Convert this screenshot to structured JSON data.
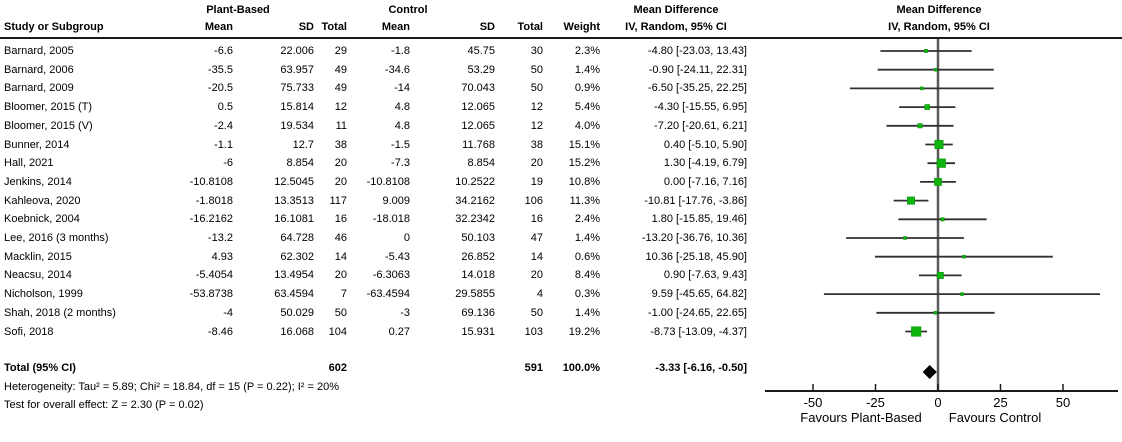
{
  "header": {
    "study_col": "Study or Subgroup",
    "group_plant": "Plant-Based",
    "group_control": "Control",
    "md_title": "Mean Difference",
    "md_sub": "IV, Random, 95% CI",
    "cols": {
      "mean": "Mean",
      "sd": "SD",
      "total": "Total",
      "weight": "Weight"
    }
  },
  "chart_data": {
    "type": "forest",
    "effect_measure": "Mean Difference, IV, Random, 95% CI",
    "axis": {
      "ticks": [
        -50,
        -25,
        0,
        25,
        50
      ],
      "tick_labels": [
        "-50",
        "-25",
        "0",
        "25",
        "50"
      ],
      "xlim": [
        -69,
        72
      ],
      "label_left": "Favours Plant-Based",
      "label_right": "Favours Control"
    },
    "studies": [
      {
        "name": "Barnard, 2005",
        "pb_mean": "-6.6",
        "pb_sd": "22.006",
        "pb_total": "29",
        "c_mean": "-1.8",
        "c_sd": "45.75",
        "c_total": "30",
        "weight": "2.3%",
        "ci_text": "-4.80 [-23.03, 13.43]",
        "est": -4.8,
        "lo": -23.03,
        "hi": 13.43,
        "weight_num": 2.3
      },
      {
        "name": "Barnard, 2006",
        "pb_mean": "-35.5",
        "pb_sd": "63.957",
        "pb_total": "49",
        "c_mean": "-34.6",
        "c_sd": "53.29",
        "c_total": "50",
        "weight": "1.4%",
        "ci_text": "-0.90 [-24.11, 22.31]",
        "est": -0.9,
        "lo": -24.11,
        "hi": 22.31,
        "weight_num": 1.4
      },
      {
        "name": "Barnard, 2009",
        "pb_mean": "-20.5",
        "pb_sd": "75.733",
        "pb_total": "49",
        "c_mean": "-14",
        "c_sd": "70.043",
        "c_total": "50",
        "weight": "0.9%",
        "ci_text": "-6.50 [-35.25, 22.25]",
        "est": -6.5,
        "lo": -35.25,
        "hi": 22.25,
        "weight_num": 0.9
      },
      {
        "name": "Bloomer, 2015 (T)",
        "pb_mean": "0.5",
        "pb_sd": "15.814",
        "pb_total": "12",
        "c_mean": "4.8",
        "c_sd": "12.065",
        "c_total": "12",
        "weight": "5.4%",
        "ci_text": "-4.30 [-15.55, 6.95]",
        "est": -4.3,
        "lo": -15.55,
        "hi": 6.95,
        "weight_num": 5.4
      },
      {
        "name": "Bloomer, 2015 (V)",
        "pb_mean": "-2.4",
        "pb_sd": "19.534",
        "pb_total": "11",
        "c_mean": "4.8",
        "c_sd": "12.065",
        "c_total": "12",
        "weight": "4.0%",
        "ci_text": "-7.20 [-20.61, 6.21]",
        "est": -7.2,
        "lo": -20.61,
        "hi": 6.21,
        "weight_num": 4.0
      },
      {
        "name": "Bunner, 2014",
        "pb_mean": "-1.1",
        "pb_sd": "12.7",
        "pb_total": "38",
        "c_mean": "-1.5",
        "c_sd": "11.768",
        "c_total": "38",
        "weight": "15.1%",
        "ci_text": "0.40 [-5.10, 5.90]",
        "est": 0.4,
        "lo": -5.1,
        "hi": 5.9,
        "weight_num": 15.1
      },
      {
        "name": "Hall, 2021",
        "pb_mean": "-6",
        "pb_sd": "8.854",
        "pb_total": "20",
        "c_mean": "-7.3",
        "c_sd": "8.854",
        "c_total": "20",
        "weight": "15.2%",
        "ci_text": "1.30 [-4.19, 6.79]",
        "est": 1.3,
        "lo": -4.19,
        "hi": 6.79,
        "weight_num": 15.2
      },
      {
        "name": "Jenkins, 2014",
        "pb_mean": "-10.8108",
        "pb_sd": "12.5045",
        "pb_total": "20",
        "c_mean": "-10.8108",
        "c_sd": "10.2522",
        "c_total": "19",
        "weight": "10.8%",
        "ci_text": "0.00 [-7.16, 7.16]",
        "est": 0.0,
        "lo": -7.16,
        "hi": 7.16,
        "weight_num": 10.8
      },
      {
        "name": "Kahleova, 2020",
        "pb_mean": "-1.8018",
        "pb_sd": "13.3513",
        "pb_total": "117",
        "c_mean": "9.009",
        "c_sd": "34.2162",
        "c_total": "106",
        "weight": "11.3%",
        "ci_text": "-10.81 [-17.76, -3.86]",
        "est": -10.81,
        "lo": -17.76,
        "hi": -3.86,
        "weight_num": 11.3
      },
      {
        "name": "Koebnick, 2004",
        "pb_mean": "-16.2162",
        "pb_sd": "16.1081",
        "pb_total": "16",
        "c_mean": "-18.018",
        "c_sd": "32.2342",
        "c_total": "16",
        "weight": "2.4%",
        "ci_text": "1.80 [-15.85, 19.46]",
        "est": 1.8,
        "lo": -15.85,
        "hi": 19.46,
        "weight_num": 2.4
      },
      {
        "name": "Lee, 2016 (3 months)",
        "pb_mean": "-13.2",
        "pb_sd": "64.728",
        "pb_total": "46",
        "c_mean": "0",
        "c_sd": "50.103",
        "c_total": "47",
        "weight": "1.4%",
        "ci_text": "-13.20 [-36.76, 10.36]",
        "est": -13.2,
        "lo": -36.76,
        "hi": 10.36,
        "weight_num": 1.4
      },
      {
        "name": "Macklin, 2015",
        "pb_mean": "4.93",
        "pb_sd": "62.302",
        "pb_total": "14",
        "c_mean": "-5.43",
        "c_sd": "26.852",
        "c_total": "14",
        "weight": "0.6%",
        "ci_text": "10.36 [-25.18, 45.90]",
        "est": 10.36,
        "lo": -25.18,
        "hi": 45.9,
        "weight_num": 0.6
      },
      {
        "name": "Neacsu, 2014",
        "pb_mean": "-5.4054",
        "pb_sd": "13.4954",
        "pb_total": "20",
        "c_mean": "-6.3063",
        "c_sd": "14.018",
        "c_total": "20",
        "weight": "8.4%",
        "ci_text": "0.90 [-7.63, 9.43]",
        "est": 0.9,
        "lo": -7.63,
        "hi": 9.43,
        "weight_num": 8.4
      },
      {
        "name": "Nicholson, 1999",
        "pb_mean": "-53.8738",
        "pb_sd": "63.4594",
        "pb_total": "7",
        "c_mean": "-63.4594",
        "c_sd": "29.5855",
        "c_total": "4",
        "weight": "0.3%",
        "ci_text": "9.59 [-45.65, 64.82]",
        "est": 9.59,
        "lo": -45.65,
        "hi": 64.82,
        "weight_num": 0.3
      },
      {
        "name": "Shah, 2018 (2 months)",
        "pb_mean": "-4",
        "pb_sd": "50.029",
        "pb_total": "50",
        "c_mean": "-3",
        "c_sd": "69.136",
        "c_total": "50",
        "weight": "1.4%",
        "ci_text": "-1.00 [-24.65, 22.65]",
        "est": -1.0,
        "lo": -24.65,
        "hi": 22.65,
        "weight_num": 1.4
      },
      {
        "name": "Sofi, 2018",
        "pb_mean": "-8.46",
        "pb_sd": "16.068",
        "pb_total": "104",
        "c_mean": "0.27",
        "c_sd": "15.931",
        "c_total": "103",
        "weight": "19.2%",
        "ci_text": "-8.73 [-13.09, -4.37]",
        "est": -8.73,
        "lo": -13.09,
        "hi": -4.37,
        "weight_num": 19.2
      }
    ],
    "total": {
      "label": "Total (95% CI)",
      "pb_total": "602",
      "c_total": "591",
      "weight": "100.0%",
      "ci_text": "-3.33 [-6.16, -0.50]",
      "est": -3.33,
      "lo": -6.16,
      "hi": -0.5
    }
  },
  "footer": {
    "heterogeneity": "Heterogeneity: Tau² = 5.89; Chi² = 18.84, df = 15 (P = 0.22); I² = 20%",
    "overall_effect": "Test for overall effect: Z = 2.30 (P = 0.02)"
  },
  "colors": {
    "marker_green": "#0db50d",
    "marker_edge": "#0a8c0a",
    "ci_line": "#303030",
    "zero_line": "#5a5a5a",
    "axis_line": "#1a1a1a",
    "diamond": "#000000"
  }
}
